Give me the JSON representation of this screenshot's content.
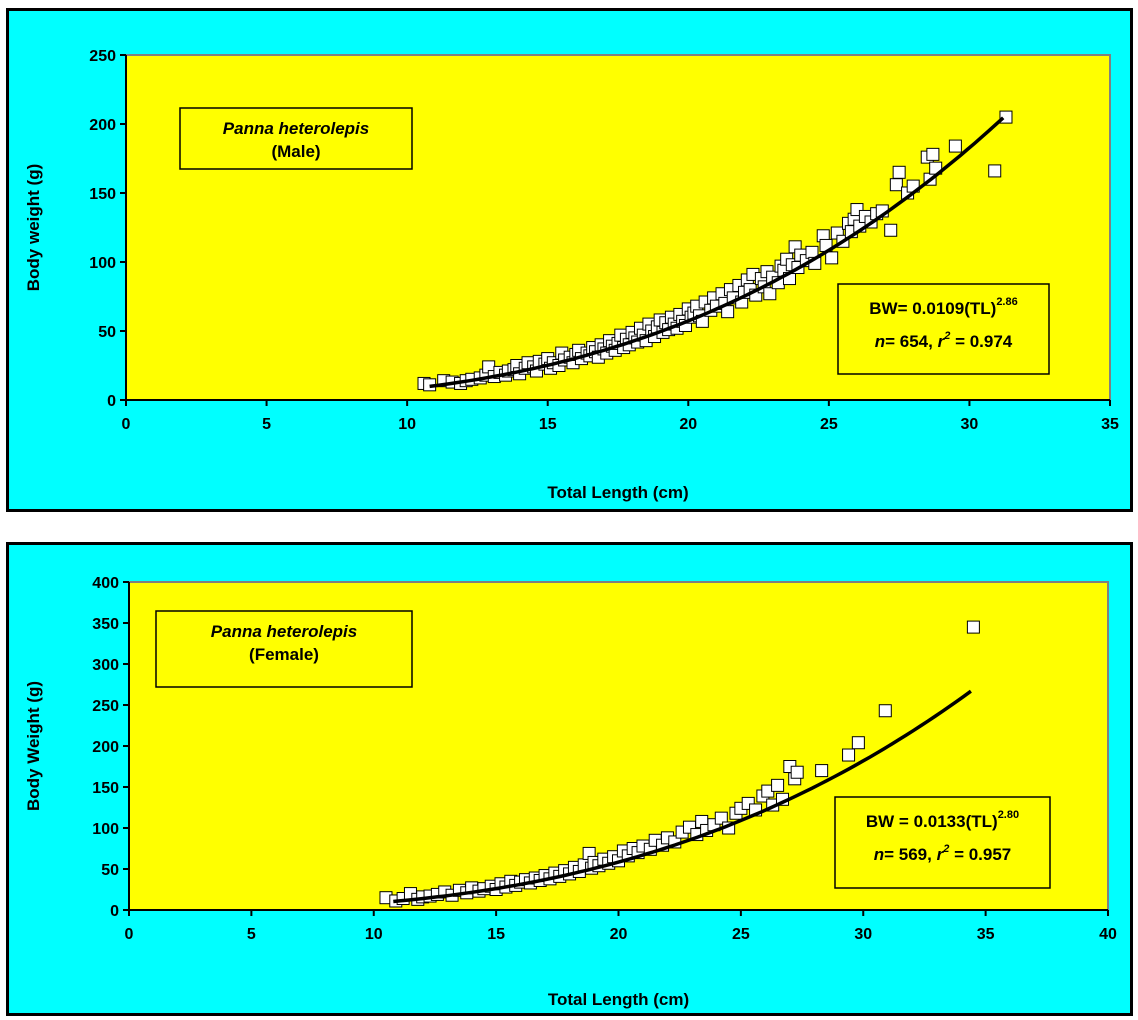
{
  "chart_data": [
    {
      "type": "scatter",
      "species_label": "Panna heterolepis",
      "sex_label": "(Male)",
      "xlabel": "Total Length (cm)",
      "ylabel": "Body weight (g)",
      "xlim": [
        0,
        35
      ],
      "ylim": [
        0,
        250
      ],
      "xticks": [
        0,
        5,
        10,
        15,
        20,
        25,
        30,
        35
      ],
      "yticks": [
        0,
        50,
        100,
        150,
        200,
        250
      ],
      "equation_main": "BW= 0.0109(TL)",
      "equation_exponent": "2.86",
      "stats_n_label": "n",
      "stats_n_value": "= 654, ",
      "stats_r_label": "r",
      "stats_r_exp": "2",
      "stats_r_value": " = 0.974",
      "fit": {
        "a": 0.0109,
        "b": 2.86,
        "x_range": [
          10.8,
          31.2
        ]
      },
      "points": [
        [
          10.6,
          12
        ],
        [
          10.8,
          11
        ],
        [
          11.3,
          14
        ],
        [
          11.6,
          13
        ],
        [
          11.9,
          12
        ],
        [
          12.1,
          14
        ],
        [
          12.3,
          15
        ],
        [
          12.6,
          16
        ],
        [
          12.8,
          18
        ],
        [
          12.9,
          24
        ],
        [
          13.1,
          17
        ],
        [
          13.3,
          20
        ],
        [
          13.5,
          18
        ],
        [
          13.6,
          21
        ],
        [
          13.8,
          22
        ],
        [
          13.9,
          25
        ],
        [
          14.0,
          19
        ],
        [
          14.2,
          23
        ],
        [
          14.3,
          27
        ],
        [
          14.5,
          24
        ],
        [
          14.6,
          21
        ],
        [
          14.7,
          28
        ],
        [
          14.9,
          26
        ],
        [
          15.0,
          30
        ],
        [
          15.1,
          23
        ],
        [
          15.2,
          27
        ],
        [
          15.4,
          25
        ],
        [
          15.5,
          34
        ],
        [
          15.6,
          29
        ],
        [
          15.8,
          31
        ],
        [
          15.9,
          27
        ],
        [
          16.0,
          33
        ],
        [
          16.1,
          36
        ],
        [
          16.2,
          30
        ],
        [
          16.4,
          34
        ],
        [
          16.5,
          32
        ],
        [
          16.6,
          38
        ],
        [
          16.7,
          35
        ],
        [
          16.8,
          31
        ],
        [
          16.9,
          40
        ],
        [
          17.0,
          37
        ],
        [
          17.1,
          34
        ],
        [
          17.2,
          43
        ],
        [
          17.3,
          39
        ],
        [
          17.4,
          36
        ],
        [
          17.5,
          41
        ],
        [
          17.6,
          47
        ],
        [
          17.7,
          38
        ],
        [
          17.8,
          44
        ],
        [
          17.9,
          40
        ],
        [
          18.0,
          49
        ],
        [
          18.1,
          45
        ],
        [
          18.2,
          42
        ],
        [
          18.3,
          52
        ],
        [
          18.4,
          47
        ],
        [
          18.5,
          43
        ],
        [
          18.6,
          55
        ],
        [
          18.7,
          50
        ],
        [
          18.8,
          46
        ],
        [
          18.9,
          53
        ],
        [
          19.0,
          58
        ],
        [
          19.1,
          49
        ],
        [
          19.2,
          56
        ],
        [
          19.3,
          51
        ],
        [
          19.4,
          60
        ],
        [
          19.5,
          55
        ],
        [
          19.6,
          52
        ],
        [
          19.7,
          62
        ],
        [
          19.8,
          57
        ],
        [
          19.9,
          54
        ],
        [
          20.0,
          66
        ],
        [
          20.1,
          60
        ],
        [
          20.2,
          63
        ],
        [
          20.3,
          68
        ],
        [
          20.4,
          61
        ],
        [
          20.5,
          57
        ],
        [
          20.6,
          71
        ],
        [
          20.8,
          65
        ],
        [
          20.9,
          74
        ],
        [
          21.0,
          68
        ],
        [
          21.2,
          77
        ],
        [
          21.3,
          70
        ],
        [
          21.4,
          64
        ],
        [
          21.5,
          80
        ],
        [
          21.6,
          74
        ],
        [
          21.8,
          83
        ],
        [
          21.9,
          71
        ],
        [
          22.0,
          78
        ],
        [
          22.1,
          87
        ],
        [
          22.2,
          80
        ],
        [
          22.3,
          91
        ],
        [
          22.4,
          76
        ],
        [
          22.6,
          88
        ],
        [
          22.7,
          82
        ],
        [
          22.8,
          93
        ],
        [
          22.9,
          77
        ],
        [
          23.0,
          89
        ],
        [
          23.2,
          85
        ],
        [
          23.3,
          97
        ],
        [
          23.4,
          94
        ],
        [
          23.5,
          102
        ],
        [
          23.6,
          88
        ],
        [
          23.7,
          98
        ],
        [
          23.8,
          111
        ],
        [
          23.9,
          96
        ],
        [
          24.0,
          105
        ],
        [
          24.2,
          101
        ],
        [
          24.4,
          107
        ],
        [
          24.5,
          99
        ],
        [
          24.8,
          119
        ],
        [
          24.9,
          112
        ],
        [
          25.1,
          103
        ],
        [
          25.3,
          121
        ],
        [
          25.5,
          115
        ],
        [
          25.7,
          128
        ],
        [
          25.8,
          122
        ],
        [
          25.9,
          131
        ],
        [
          26.0,
          138
        ],
        [
          26.1,
          126
        ],
        [
          26.3,
          133
        ],
        [
          26.5,
          129
        ],
        [
          26.7,
          135
        ],
        [
          26.9,
          137
        ],
        [
          27.2,
          123
        ],
        [
          27.4,
          156
        ],
        [
          27.5,
          165
        ],
        [
          27.8,
          150
        ],
        [
          28.0,
          155
        ],
        [
          28.5,
          176
        ],
        [
          28.7,
          178
        ],
        [
          28.6,
          160
        ],
        [
          28.8,
          168
        ],
        [
          29.5,
          184
        ],
        [
          30.9,
          166
        ],
        [
          31.3,
          205
        ]
      ]
    },
    {
      "type": "scatter",
      "species_label": "Panna heterolepis",
      "sex_label": "(Female)",
      "xlabel": "Total Length (cm)",
      "ylabel": "Body Weight (g)",
      "xlim": [
        0,
        40
      ],
      "ylim": [
        0,
        400
      ],
      "xticks": [
        0,
        5,
        10,
        15,
        20,
        25,
        30,
        35,
        40
      ],
      "yticks": [
        0,
        50,
        100,
        150,
        200,
        250,
        300,
        350,
        400
      ],
      "equation_main": "BW = 0.0133(TL)",
      "equation_exponent": "2.80",
      "stats_n_label": "n",
      "stats_n_value": "= 569, ",
      "stats_r_label": "r",
      "stats_r_exp": "2",
      "stats_r_value": " = 0.957",
      "fit": {
        "a": 0.0133,
        "b": 2.8,
        "x_range": [
          10.8,
          34.4
        ]
      },
      "points": [
        [
          10.5,
          15
        ],
        [
          10.9,
          11
        ],
        [
          11.2,
          14
        ],
        [
          11.5,
          20
        ],
        [
          11.8,
          13
        ],
        [
          12.0,
          16
        ],
        [
          12.3,
          17
        ],
        [
          12.6,
          19
        ],
        [
          12.9,
          22
        ],
        [
          13.2,
          18
        ],
        [
          13.5,
          24
        ],
        [
          13.8,
          21
        ],
        [
          14.0,
          27
        ],
        [
          14.3,
          23
        ],
        [
          14.5,
          26
        ],
        [
          14.8,
          29
        ],
        [
          15.0,
          25
        ],
        [
          15.2,
          32
        ],
        [
          15.4,
          28
        ],
        [
          15.6,
          35
        ],
        [
          15.8,
          30
        ],
        [
          16.0,
          34
        ],
        [
          16.2,
          37
        ],
        [
          16.4,
          33
        ],
        [
          16.6,
          39
        ],
        [
          16.8,
          36
        ],
        [
          17.0,
          42
        ],
        [
          17.2,
          38
        ],
        [
          17.4,
          45
        ],
        [
          17.6,
          41
        ],
        [
          17.8,
          48
        ],
        [
          18.0,
          44
        ],
        [
          18.2,
          52
        ],
        [
          18.4,
          47
        ],
        [
          18.6,
          55
        ],
        [
          18.8,
          69
        ],
        [
          18.9,
          51
        ],
        [
          19.0,
          58
        ],
        [
          19.2,
          54
        ],
        [
          19.4,
          62
        ],
        [
          19.6,
          57
        ],
        [
          19.8,
          65
        ],
        [
          20.0,
          60
        ],
        [
          20.2,
          72
        ],
        [
          20.4,
          66
        ],
        [
          20.6,
          75
        ],
        [
          20.8,
          70
        ],
        [
          21.0,
          78
        ],
        [
          21.3,
          74
        ],
        [
          21.5,
          85
        ],
        [
          21.8,
          79
        ],
        [
          22.0,
          88
        ],
        [
          22.3,
          83
        ],
        [
          22.6,
          95
        ],
        [
          22.9,
          101
        ],
        [
          23.2,
          92
        ],
        [
          23.4,
          108
        ],
        [
          23.6,
          97
        ],
        [
          23.9,
          104
        ],
        [
          24.2,
          112
        ],
        [
          24.5,
          100
        ],
        [
          24.8,
          118
        ],
        [
          25.0,
          124
        ],
        [
          25.3,
          130
        ],
        [
          25.6,
          122
        ],
        [
          25.9,
          139
        ],
        [
          26.1,
          145
        ],
        [
          26.3,
          128
        ],
        [
          26.5,
          152
        ],
        [
          26.7,
          135
        ],
        [
          27.0,
          175
        ],
        [
          27.2,
          160
        ],
        [
          27.3,
          168
        ],
        [
          28.3,
          170
        ],
        [
          29.4,
          189
        ],
        [
          29.8,
          204
        ],
        [
          30.9,
          243
        ],
        [
          34.5,
          345
        ]
      ]
    }
  ]
}
